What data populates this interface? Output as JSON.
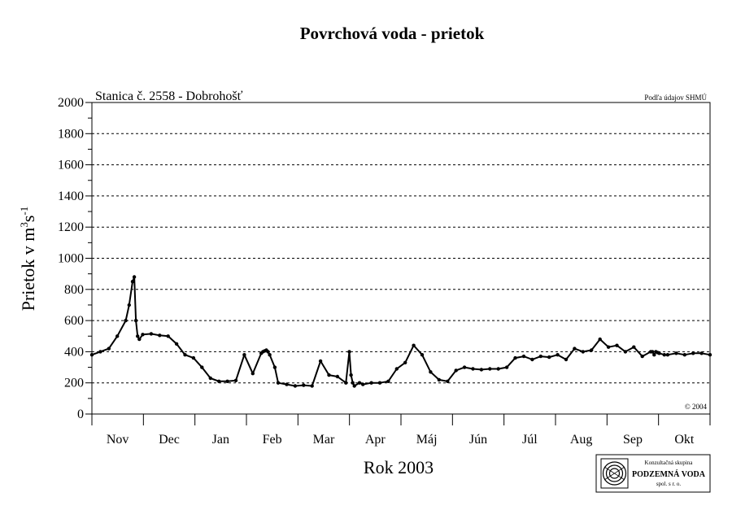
{
  "chart_data": {
    "type": "line",
    "title": "Povrchová voda - prietok",
    "subtitle": "Stanica č. 2558 - Dobrohošť",
    "source_note": "Podľa údajov SHMÚ",
    "copyright": "© 2004",
    "xlabel": "Rok 2003",
    "ylabel_main": "Prietok v m",
    "ylabel_sup1": "3",
    "ylabel_mid": "s",
    "ylabel_sup2": "-1",
    "ylim": [
      0,
      2000
    ],
    "yticks": [
      "0",
      "200",
      "400",
      "600",
      "800",
      "1000",
      "1200",
      "1400",
      "1600",
      "1800",
      "2000"
    ],
    "months": [
      "Nov",
      "Dec",
      "Jan",
      "Feb",
      "Mar",
      "Apr",
      "Máj",
      "Jún",
      "Júl",
      "Aug",
      "Sep",
      "Okt"
    ],
    "grid": "horizontal dashed",
    "series": [
      {
        "x": [
          0,
          5,
          10,
          15,
          20,
          22,
          24,
          25,
          26,
          27,
          28,
          30,
          35,
          40,
          45,
          50,
          55,
          60,
          65,
          70,
          75,
          80,
          85,
          90,
          95,
          100,
          101,
          102,
          103,
          104,
          105,
          108,
          110,
          115,
          120,
          125,
          130,
          135,
          140,
          145,
          150,
          152,
          153,
          154,
          155,
          158,
          160,
          165,
          170,
          175,
          180,
          185,
          190,
          195,
          200,
          205,
          210,
          215,
          220,
          225,
          230,
          235,
          240,
          245,
          250,
          255,
          260,
          265,
          270,
          275,
          280,
          285,
          290,
          295,
          300,
          305,
          310,
          315,
          320,
          325,
          330,
          331,
          332,
          333,
          334,
          335,
          338,
          340,
          345,
          350,
          355,
          360,
          365
        ],
        "y": [
          380,
          400,
          420,
          500,
          600,
          700,
          850,
          880,
          600,
          500,
          480,
          510,
          515,
          505,
          500,
          450,
          380,
          360,
          300,
          230,
          210,
          210,
          215,
          380,
          260,
          390,
          400,
          405,
          410,
          400,
          380,
          300,
          200,
          190,
          180,
          185,
          180,
          340,
          250,
          240,
          200,
          400,
          250,
          200,
          180,
          200,
          190,
          200,
          200,
          210,
          290,
          330,
          440,
          380,
          270,
          220,
          210,
          280,
          300,
          290,
          285,
          290,
          290,
          300,
          360,
          370,
          350,
          370,
          365,
          380,
          350,
          420,
          400,
          410,
          480,
          430,
          440,
          400,
          430,
          370,
          400,
          400,
          380,
          400,
          395,
          390,
          380,
          380,
          390,
          380,
          390,
          390,
          380
        ],
        "extra_x": [],
        "extra_y": []
      }
    ]
  },
  "logo": {
    "line1": "Konzultačná skupina",
    "line2": "PODZEMNÁ VODA",
    "line3": "spol. s r. o."
  }
}
